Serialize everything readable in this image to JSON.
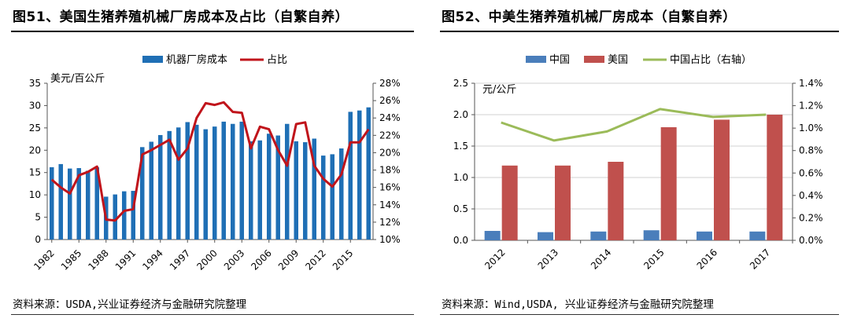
{
  "charts": [
    {
      "figure_title": "图51、美国生猪养殖机械厂房成本及占比（自繁自养）",
      "source": "资料来源：USDA,兴业证券经济与金融研究院整理"
    },
    {
      "figure_title": "图52、中美生猪养殖机械厂房成本（自繁自养）",
      "source": "资料来源：Wind,USDA, 兴业证券经济与金融研究院整理"
    }
  ],
  "chart_data": [
    {
      "type": "bar",
      "title": "图51、美国生猪养殖机械厂房成本及占比（自繁自养）",
      "ylabel": "美元/百公斤",
      "ylim": [
        0,
        35
      ],
      "y_ticks": [
        "0",
        "5",
        "10",
        "15",
        "20",
        "25",
        "30",
        "35"
      ],
      "y2lim": [
        0.1,
        0.28
      ],
      "y2_ticks": [
        "10%",
        "12%",
        "14%",
        "16%",
        "18%",
        "20%",
        "22%",
        "24%",
        "26%",
        "28%"
      ],
      "x": [
        1982,
        1983,
        1984,
        1985,
        1986,
        1987,
        1988,
        1989,
        1990,
        1991,
        1992,
        1993,
        1994,
        1995,
        1996,
        1997,
        1998,
        1999,
        2000,
        2001,
        2002,
        2003,
        2004,
        2005,
        2006,
        2007,
        2008,
        2009,
        2010,
        2011,
        2012,
        2013,
        2014,
        2015,
        2016,
        2017
      ],
      "x_tick_labels": [
        "1982",
        "1985",
        "1988",
        "1991",
        "1994",
        "1997",
        "2000",
        "2003",
        "2006",
        "2009",
        "2012",
        "2015"
      ],
      "series": [
        {
          "name": "机器厂房成本",
          "kind": "bar",
          "axis": "left",
          "color": "#1f6fb5",
          "values": [
            16.2,
            16.9,
            15.9,
            16.0,
            15.4,
            16.2,
            9.6,
            10.1,
            10.8,
            10.9,
            20.7,
            21.9,
            23.4,
            24.3,
            25.1,
            26.3,
            25.7,
            24.7,
            25.3,
            26.4,
            25.9,
            26.4,
            22.0,
            22.2,
            23.7,
            23.3,
            25.9,
            22.0,
            21.8,
            22.6,
            18.8,
            19.1,
            20.4,
            28.6,
            28.9,
            29.6
          ]
        },
        {
          "name": "占比",
          "kind": "line",
          "axis": "right",
          "color": "#c0141b",
          "values": [
            0.169,
            0.16,
            0.153,
            0.174,
            0.178,
            0.184,
            0.123,
            0.122,
            0.133,
            0.135,
            0.198,
            0.203,
            0.209,
            0.215,
            0.192,
            0.205,
            0.24,
            0.257,
            0.255,
            0.258,
            0.247,
            0.246,
            0.205,
            0.23,
            0.227,
            0.203,
            0.185,
            0.233,
            0.235,
            0.185,
            0.17,
            0.161,
            0.175,
            0.212,
            0.212,
            0.227
          ]
        }
      ],
      "legend": {
        "position": "top",
        "entries": [
          "机器厂房成本",
          "占比"
        ]
      },
      "grid": false
    },
    {
      "type": "bar",
      "title": "图52、中美生猪养殖机械厂房成本（自繁自养）",
      "ylabel": "元/公斤",
      "ylim": [
        0,
        2.5
      ],
      "y_ticks": [
        "0.0",
        "0.5",
        "1.0",
        "1.5",
        "2.0",
        "2.5"
      ],
      "y2lim": [
        0,
        0.014
      ],
      "y2_ticks": [
        "0.0%",
        "0.2%",
        "0.4%",
        "0.6%",
        "0.8%",
        "1.0%",
        "1.2%",
        "1.4%"
      ],
      "categories": [
        "2012",
        "2013",
        "2014",
        "2015",
        "2016",
        "2017"
      ],
      "series": [
        {
          "name": "中国",
          "kind": "bar",
          "axis": "left",
          "color": "#4a7ebb",
          "values": [
            0.15,
            0.13,
            0.14,
            0.16,
            0.14,
            0.14
          ]
        },
        {
          "name": "美国",
          "kind": "bar",
          "axis": "left",
          "color": "#c0504d",
          "values": [
            1.19,
            1.19,
            1.25,
            1.8,
            1.92,
            2.0
          ]
        },
        {
          "name": "中国占比（右轴）",
          "kind": "line",
          "axis": "right",
          "color": "#9bbb59",
          "values": [
            0.0105,
            0.0089,
            0.0097,
            0.0117,
            0.011,
            0.0112
          ]
        }
      ],
      "legend": {
        "position": "top",
        "entries": [
          "中国",
          "美国",
          "中国占比（右轴）"
        ]
      },
      "grid": true
    }
  ]
}
